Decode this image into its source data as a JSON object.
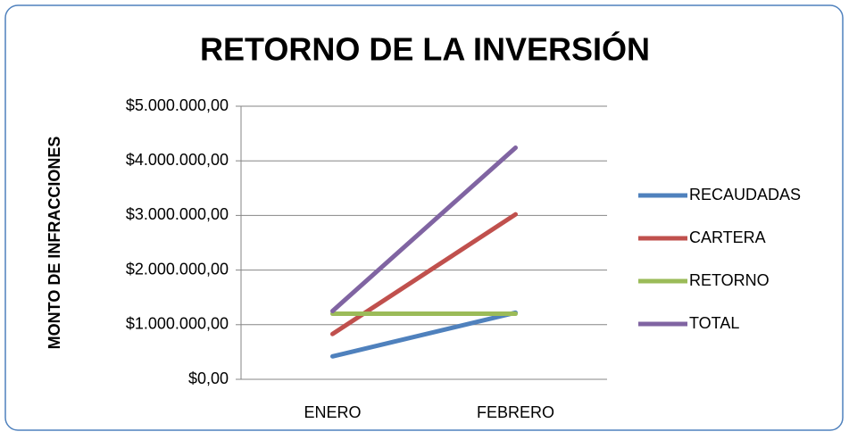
{
  "chart_data": {
    "type": "line",
    "title": "RETORNO DE LA INVERSIÓN",
    "y_label": "MONTO DE INFRACCIONES",
    "categories": [
      "ENERO",
      "FEBRERO"
    ],
    "series": [
      {
        "name": "RECAUDADAS",
        "color": "#4f81bd",
        "values": [
          420000,
          1220000
        ]
      },
      {
        "name": "CARTERA",
        "color": "#c0504d",
        "values": [
          830000,
          3020000
        ]
      },
      {
        "name": "RETORNO",
        "color": "#9bbb59",
        "values": [
          1200000,
          1200000
        ]
      },
      {
        "name": "TOTAL",
        "color": "#8064a2",
        "values": [
          1250000,
          4240000
        ]
      }
    ],
    "ylim": [
      0,
      5000000
    ],
    "yticks": [
      {
        "value": 0,
        "label": "$0,00"
      },
      {
        "value": 1000000,
        "label": "$1.000.000,00"
      },
      {
        "value": 2000000,
        "label": "$2.000.000,00"
      },
      {
        "value": 3000000,
        "label": "$3.000.000,00"
      },
      {
        "value": 4000000,
        "label": "$4.000.000,00"
      },
      {
        "value": 5000000,
        "label": "$5.000.000,00"
      }
    ],
    "grid": true,
    "legend": "right"
  }
}
